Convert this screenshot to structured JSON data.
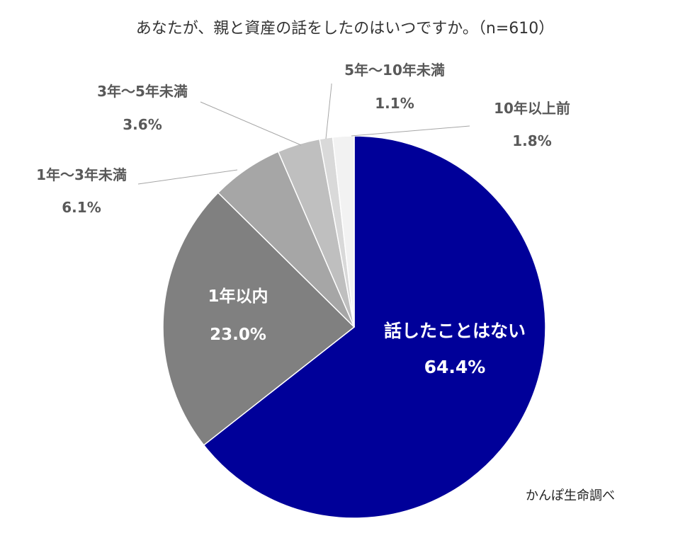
{
  "title": "あなたが、親と資産の話をしたのはいつですか。（n=610）",
  "source": "かんぽ生命調べ",
  "chart_data": {
    "type": "pie",
    "start": "12 o'clock",
    "direction": "clockwise",
    "legend": "none",
    "slices": [
      {
        "label": "話したことはない",
        "value": 64.4,
        "value_label": "64.4%",
        "color": "#000099",
        "label_color": "#ffffff",
        "label_placement": "inside"
      },
      {
        "label": "1年以内",
        "value": 23.0,
        "value_label": "23.0%",
        "color": "#808080",
        "label_color": "#ffffff",
        "label_placement": "inside"
      },
      {
        "label": "1年～3年未満",
        "value": 6.1,
        "value_label": "6.1%",
        "color": "#a6a6a6",
        "label_color": "#595959",
        "label_placement": "outside"
      },
      {
        "label": "3年～5年未満",
        "value": 3.6,
        "value_label": "3.6%",
        "color": "#bfbfbf",
        "label_color": "#595959",
        "label_placement": "outside"
      },
      {
        "label": "5年～10年未満",
        "value": 1.1,
        "value_label": "1.1%",
        "color": "#d9d9d9",
        "label_color": "#595959",
        "label_placement": "outside"
      },
      {
        "label": "10年以上前",
        "value": 1.8,
        "value_label": "1.8%",
        "color": "#f2f2f2",
        "label_color": "#595959",
        "label_placement": "outside"
      }
    ]
  }
}
